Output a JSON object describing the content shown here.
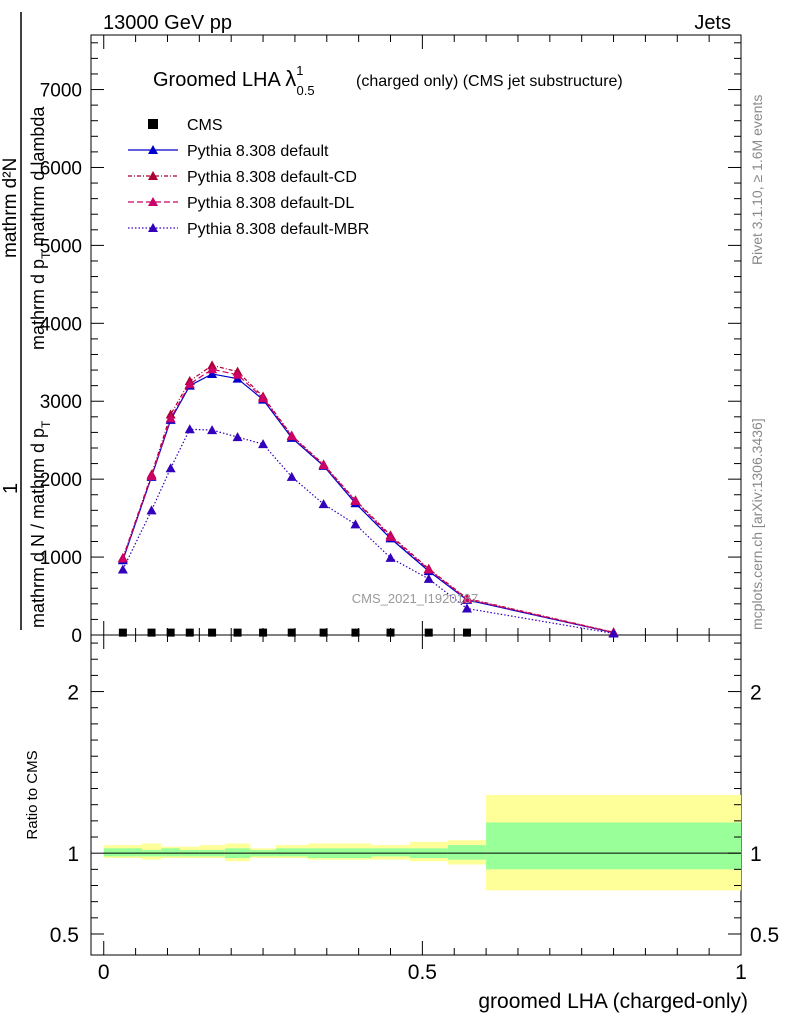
{
  "header": {
    "left": "13000 GeV pp",
    "right": "Jets"
  },
  "title": {
    "main": "Groomed LHA ",
    "lambda": "λ",
    "sup": "1",
    "sub": "0.5",
    "suffix": "(charged only) (CMS jet substructure)"
  },
  "side_labels": {
    "rivet": "Rivet 3.1.10, ≥ 1.6M events",
    "mcplots": "mcplots.cern.ch [arXiv:1306.3436]"
  },
  "watermark": "CMS_2021_I1920187",
  "ylabel_main": {
    "one": "1",
    "frac_left": "mathrm d N / mathrm d p",
    "frac_left_sub": "T",
    "numer": "mathrm d²N",
    "denom": "mathrm d p",
    "denom_sub": "T",
    "denom_tail": " mathrm d lambda"
  },
  "ylabel_ratio": "Ratio to CMS",
  "xlabel": "groomed LHA (charged-only)",
  "colors": {
    "cms": "#000000",
    "default": "#0000cc",
    "cd": "#aa0033",
    "dl": "#cc0066",
    "mbr": "#3300bb",
    "band_yellow": "#ffff99",
    "band_green": "#99ff99"
  },
  "chart_data": [
    {
      "type": "line",
      "panel": "main",
      "xlim": [
        -0.02,
        1.0
      ],
      "ylim": [
        0,
        7700
      ],
      "yticks": [
        0,
        1000,
        2000,
        3000,
        4000,
        5000,
        6000,
        7000
      ],
      "ytick_labels": [
        "0",
        "1000",
        "2000",
        "3000",
        "4000",
        "5000",
        "6000",
        "7000"
      ],
      "legend_position": "top-left",
      "series": [
        {
          "name": "CMS",
          "marker": "square",
          "x": [
            0.03,
            0.075,
            0.105,
            0.135,
            0.17,
            0.21,
            0.25,
            0.295,
            0.345,
            0.395,
            0.45,
            0.51,
            0.57
          ],
          "values": [
            5,
            5,
            5,
            5,
            5,
            5,
            5,
            5,
            5,
            5,
            5,
            5,
            5
          ]
        },
        {
          "name": "Pythia 8.308 default",
          "marker": "triangle",
          "dash": "",
          "x": [
            0.03,
            0.075,
            0.105,
            0.135,
            0.17,
            0.21,
            0.25,
            0.295,
            0.345,
            0.395,
            0.45,
            0.51,
            0.57,
            0.8
          ],
          "values": [
            960,
            2030,
            2760,
            3200,
            3350,
            3290,
            3020,
            2530,
            2170,
            1690,
            1240,
            820,
            450,
            30
          ]
        },
        {
          "name": "Pythia 8.308 default-CD",
          "marker": "triangle",
          "dash": "4,2,1,2",
          "x": [
            0.03,
            0.075,
            0.105,
            0.135,
            0.17,
            0.21,
            0.25,
            0.295,
            0.345,
            0.395,
            0.45,
            0.51,
            0.57,
            0.8
          ],
          "values": [
            990,
            2060,
            2830,
            3260,
            3460,
            3380,
            3060,
            2560,
            2190,
            1730,
            1280,
            850,
            470,
            35
          ]
        },
        {
          "name": "Pythia 8.308 default-DL",
          "marker": "triangle",
          "dash": "6,3",
          "x": [
            0.03,
            0.075,
            0.105,
            0.135,
            0.17,
            0.21,
            0.25,
            0.295,
            0.345,
            0.395,
            0.45,
            0.51,
            0.57,
            0.8
          ],
          "values": [
            980,
            2040,
            2780,
            3220,
            3410,
            3340,
            3040,
            2550,
            2180,
            1720,
            1260,
            840,
            460,
            32
          ]
        },
        {
          "name": "Pythia 8.308 default-MBR",
          "marker": "triangle",
          "dash": "1.5,2",
          "x": [
            0.03,
            0.075,
            0.105,
            0.135,
            0.17,
            0.21,
            0.25,
            0.295,
            0.345,
            0.395,
            0.45,
            0.51,
            0.57,
            0.8
          ],
          "values": [
            840,
            1600,
            2140,
            2640,
            2630,
            2540,
            2450,
            2030,
            1680,
            1420,
            990,
            720,
            340,
            20
          ]
        }
      ]
    },
    {
      "type": "area",
      "panel": "ratio",
      "xlim": [
        -0.02,
        1.0
      ],
      "ylim": [
        0.37,
        2.35
      ],
      "yticks": [
        0.5,
        1,
        2
      ],
      "ytick_labels": [
        "0.5",
        "1",
        "2"
      ],
      "xticks": [
        0,
        0.5,
        1
      ],
      "xtick_labels": [
        "0",
        "0.5",
        "1"
      ],
      "bins": [
        0.0,
        0.06,
        0.09,
        0.12,
        0.15,
        0.19,
        0.23,
        0.27,
        0.32,
        0.37,
        0.42,
        0.48,
        0.54,
        0.6,
        1.0
      ],
      "green_lo": [
        0.98,
        0.98,
        0.98,
        0.98,
        0.98,
        0.97,
        0.98,
        0.98,
        0.97,
        0.97,
        0.98,
        0.97,
        0.96,
        0.9
      ],
      "green_hi": [
        1.03,
        1.02,
        1.03,
        1.02,
        1.02,
        1.03,
        1.02,
        1.03,
        1.03,
        1.03,
        1.03,
        1.03,
        1.05,
        1.19
      ],
      "yellow_lo": [
        0.97,
        0.96,
        0.97,
        0.97,
        0.97,
        0.95,
        0.97,
        0.97,
        0.96,
        0.96,
        0.96,
        0.95,
        0.93,
        0.77
      ],
      "yellow_hi": [
        1.05,
        1.06,
        1.04,
        1.04,
        1.05,
        1.06,
        1.03,
        1.05,
        1.06,
        1.06,
        1.05,
        1.07,
        1.08,
        1.36
      ],
      "reference": 1
    }
  ]
}
